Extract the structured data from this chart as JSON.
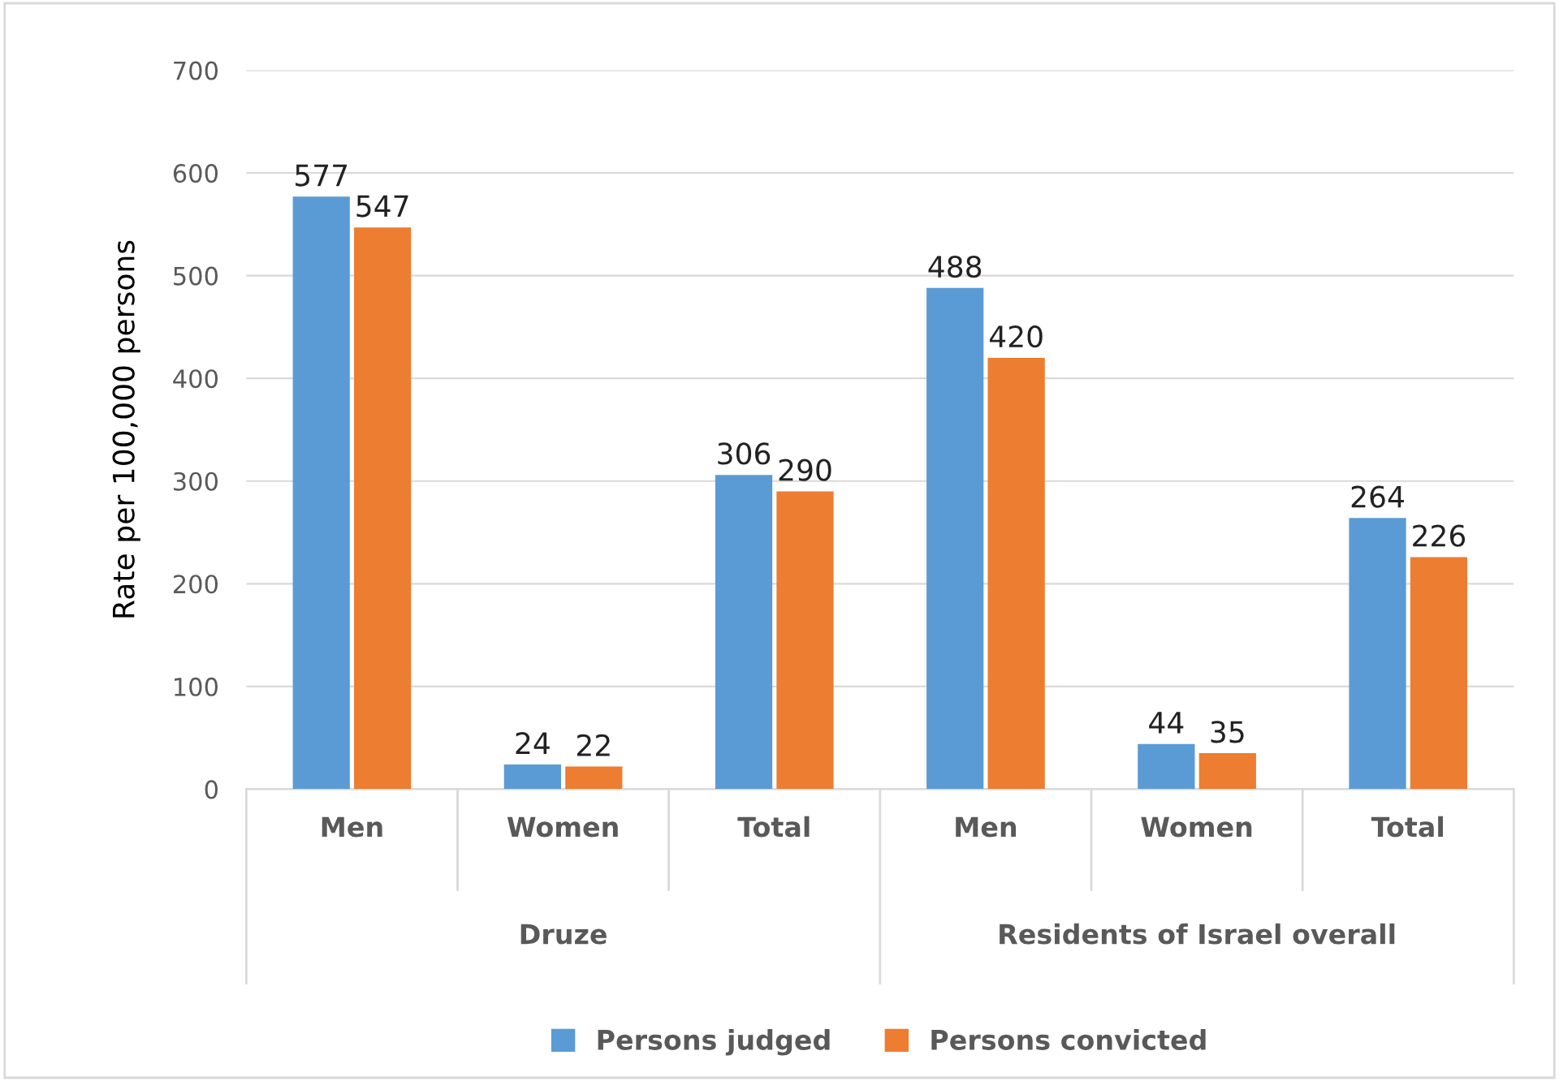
{
  "chart_data": {
    "type": "bar",
    "ylabel": "Rate per 100,000 persons",
    "categories": [
      "Men",
      "Women",
      "Total",
      "Men",
      "Women",
      "Total"
    ],
    "series": [
      {
        "name": "Persons judged",
        "color": "#5b9bd5",
        "values": [
          577,
          24,
          306,
          488,
          44,
          264
        ]
      },
      {
        "name": "Persons convicted",
        "color": "#ed7d31",
        "values": [
          547,
          22,
          290,
          420,
          35,
          226
        ]
      }
    ],
    "annotations": [
      "Druze",
      "Residents of Israel overall"
    ],
    "ylim": [
      0,
      700
    ],
    "yticks": [
      0,
      100,
      200,
      300,
      400,
      500,
      600,
      700
    ],
    "grid": "y",
    "legend": "bottom",
    "data_labels": true
  }
}
